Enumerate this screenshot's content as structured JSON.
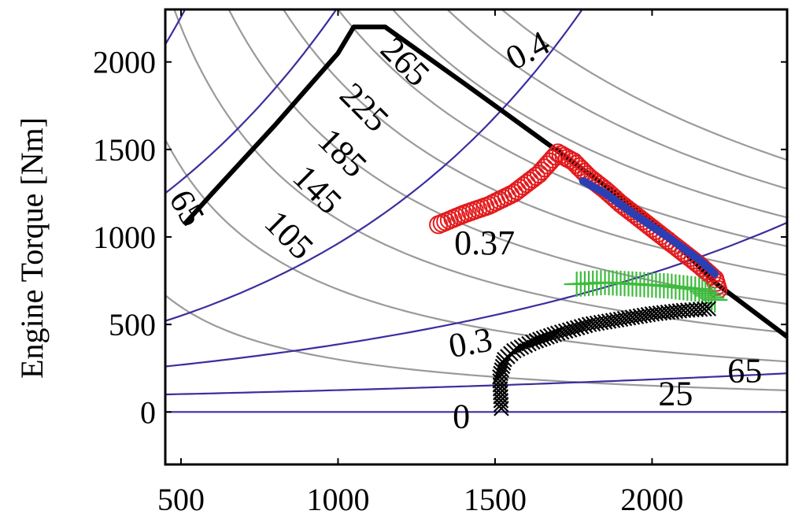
{
  "chart_data": {
    "type": "line",
    "title": "",
    "xlabel": "",
    "ylabel": "Engine Torque [Nm]",
    "xlim": [
      450,
      2430
    ],
    "ylim": [
      -300,
      2300
    ],
    "xticks": [
      500,
      1000,
      1500,
      2000
    ],
    "yticks": [
      0,
      500,
      1000,
      1500,
      2000
    ],
    "grid": false,
    "max_torque_curve": {
      "x": [
        510,
        600,
        800,
        1000,
        1050,
        1150,
        1400,
        1600,
        1800,
        2000,
        2200,
        2430
      ],
      "y": [
        1070,
        1250,
        1640,
        2050,
        2200,
        2200,
        1880,
        1620,
        1360,
        1100,
        740,
        430
      ]
    },
    "power_contours": [
      {
        "label": "25"
      },
      {
        "label": "65"
      },
      {
        "label": "105"
      },
      {
        "label": "145"
      },
      {
        "label": "185"
      },
      {
        "label": "225"
      },
      {
        "label": "265"
      }
    ],
    "efficiency_contours": [
      {
        "label": "0"
      },
      {
        "label": "0.3"
      },
      {
        "label": "0.37"
      },
      {
        "label": "0.4"
      }
    ],
    "contour_labels": [
      {
        "text": "0.4",
        "x": 1560,
        "y": 1950,
        "rotate": -28
      },
      {
        "text": "0.37",
        "x": 1370,
        "y": 900,
        "rotate": 0
      },
      {
        "text": "0.3",
        "x": 1360,
        "y": 310,
        "rotate": -10
      },
      {
        "text": "0",
        "x": 1365,
        "y": -90,
        "rotate": 0
      },
      {
        "text": "265",
        "x": 1130,
        "y": 2060,
        "rotate": 45
      },
      {
        "text": "225",
        "x": 1000,
        "y": 1800,
        "rotate": 45
      },
      {
        "text": "185",
        "x": 930,
        "y": 1540,
        "rotate": 45
      },
      {
        "text": "145",
        "x": 850,
        "y": 1330,
        "rotate": 45
      },
      {
        "text": "105",
        "x": 760,
        "y": 1070,
        "rotate": 45
      },
      {
        "text": "65",
        "x": 460,
        "y": 1220,
        "rotate": 60
      },
      {
        "text": "65",
        "x": 2240,
        "y": 170,
        "rotate": 0
      },
      {
        "text": "25",
        "x": 2020,
        "y": 40,
        "rotate": 0
      }
    ],
    "series": [
      {
        "color": "#e41a1c",
        "marker": "o",
        "x": [
          1320,
          1400,
          1480,
          1560,
          1640,
          1700,
          1750,
          1800,
          1850,
          1900,
          1950,
          2000,
          2050,
          2100,
          2150,
          2200,
          2210
        ],
        "y": [
          1070,
          1130,
          1180,
          1250,
          1360,
          1480,
          1430,
          1340,
          1270,
          1190,
          1120,
          1050,
          980,
          910,
          840,
          760,
          700
        ]
      },
      {
        "color": "#2b3fb4",
        "marker": "line",
        "x": [
          1780,
          1850,
          1950,
          2050,
          2150,
          2200
        ],
        "y": [
          1320,
          1250,
          1120,
          1000,
          870,
          790
        ]
      },
      {
        "color": "#3dbb3d",
        "marker": "+",
        "x": [
          1760,
          1850,
          1950,
          2050,
          2150,
          2200
        ],
        "y": [
          730,
          740,
          730,
          720,
          700,
          640
        ]
      },
      {
        "color": "#000000",
        "marker": "x",
        "x": [
          1520,
          1515,
          1530,
          1560,
          1620,
          1700,
          1800,
          1900,
          2000,
          2100,
          2180
        ],
        "y": [
          20,
          200,
          300,
          350,
          400,
          450,
          500,
          530,
          560,
          580,
          590
        ]
      }
    ],
    "colors": {
      "efficiency": "#3a2f9e",
      "power": "#9a9a9a",
      "torque": "#000000"
    }
  }
}
